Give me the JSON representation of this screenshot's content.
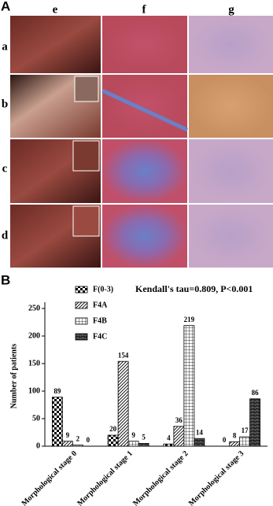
{
  "panel_a": {
    "label": "A",
    "columns": [
      "e",
      "f",
      "g"
    ],
    "rows": [
      "a",
      "b",
      "c",
      "d"
    ]
  },
  "panel_b": {
    "label": "B"
  },
  "chart_data": {
    "type": "bar",
    "annotation": "Kendall's tau=0.809, P<0.001",
    "y_label": "Number of patients",
    "categories": [
      "Morphological stage 0",
      "Morphological stage 1",
      "Morphological stage 2",
      "Morphological stage 3"
    ],
    "series": [
      {
        "name": "F(0-3)",
        "color": "#000000",
        "hatch": "checker",
        "values": [
          89,
          20,
          4,
          0
        ]
      },
      {
        "name": "F4A",
        "color": "#000000",
        "hatch": "diagonal",
        "values": [
          9,
          154,
          36,
          8
        ]
      },
      {
        "name": "F4B",
        "color": "#000000",
        "hatch": "grid",
        "values": [
          2,
          9,
          219,
          17
        ]
      },
      {
        "name": "F4C",
        "color": "#000000",
        "hatch": "brick",
        "values": [
          0,
          5,
          14,
          86
        ]
      }
    ],
    "ylim": [
      0,
      250
    ],
    "yticks": [
      0,
      50,
      100,
      150,
      200,
      250
    ]
  }
}
